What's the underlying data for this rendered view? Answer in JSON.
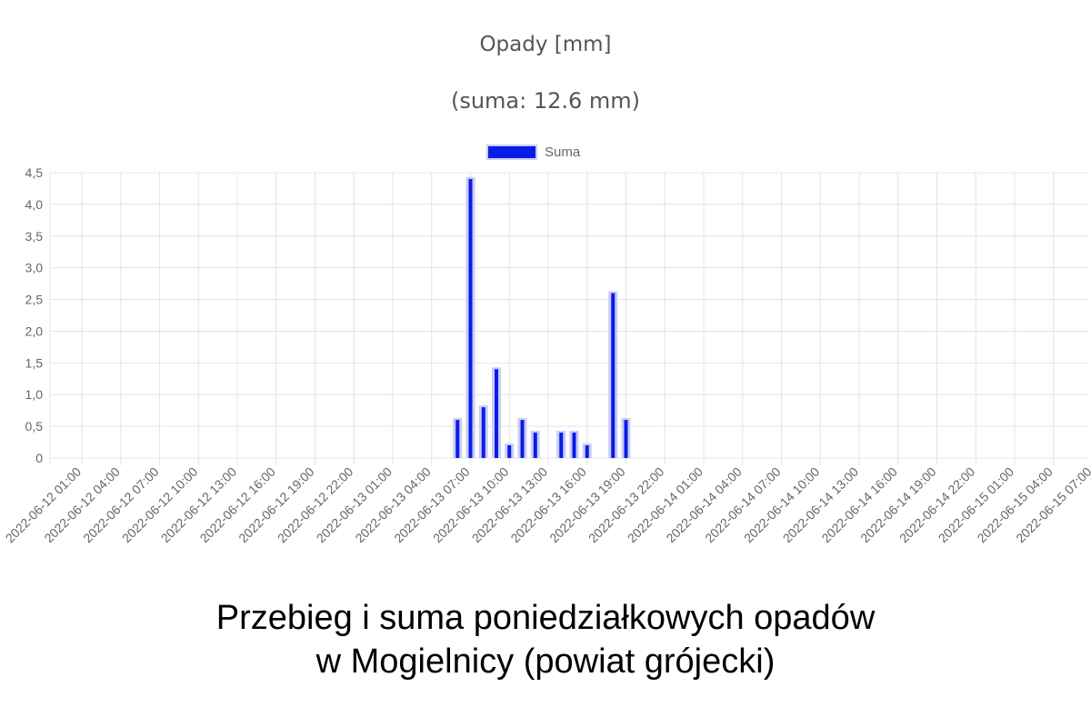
{
  "chart_data": {
    "type": "bar",
    "title": "Opady [mm]",
    "subtitle": "(suma: 12.6 mm)",
    "legend": {
      "label": "Suma",
      "position": "top-center"
    },
    "colors": {
      "bar_fill": "#0a1be8",
      "bar_border": "#c9ccf5",
      "grid": "#e4e4e4",
      "text": "#666666"
    },
    "ylim": [
      0,
      4.5
    ],
    "y_ticks": [
      "0",
      "0,5",
      "1,0",
      "1,5",
      "2,0",
      "2,5",
      "3,0",
      "3,5",
      "4,0",
      "4,5"
    ],
    "x_ticks": [
      "2022-06-12 01:00",
      "2022-06-12 04:00",
      "2022-06-12 07:00",
      "2022-06-12 10:00",
      "2022-06-12 13:00",
      "2022-06-12 16:00",
      "2022-06-12 19:00",
      "2022-06-12 22:00",
      "2022-06-13 01:00",
      "2022-06-13 04:00",
      "2022-06-13 07:00",
      "2022-06-13 10:00",
      "2022-06-13 13:00",
      "2022-06-13 16:00",
      "2022-06-13 19:00",
      "2022-06-13 22:00",
      "2022-06-14 01:00",
      "2022-06-14 04:00",
      "2022-06-14 07:00",
      "2022-06-14 10:00",
      "2022-06-14 13:00",
      "2022-06-14 16:00",
      "2022-06-14 19:00",
      "2022-06-14 22:00",
      "2022-06-15 01:00",
      "2022-06-15 04:00",
      "2022-06-15 07:00"
    ],
    "grid": true,
    "series": [
      {
        "name": "Suma",
        "points": [
          {
            "x": "2022-06-13 06:00",
            "y": 0.6
          },
          {
            "x": "2022-06-13 07:00",
            "y": 4.4
          },
          {
            "x": "2022-06-13 08:00",
            "y": 0.8
          },
          {
            "x": "2022-06-13 09:00",
            "y": 1.4
          },
          {
            "x": "2022-06-13 10:00",
            "y": 0.2
          },
          {
            "x": "2022-06-13 11:00",
            "y": 0.6
          },
          {
            "x": "2022-06-13 12:00",
            "y": 0.4
          },
          {
            "x": "2022-06-13 14:00",
            "y": 0.4
          },
          {
            "x": "2022-06-13 15:00",
            "y": 0.4
          },
          {
            "x": "2022-06-13 16:00",
            "y": 0.2
          },
          {
            "x": "2022-06-13 18:00",
            "y": 2.6
          },
          {
            "x": "2022-06-13 19:00",
            "y": 0.6
          }
        ]
      }
    ]
  },
  "caption": {
    "line1": "Przebieg i suma poniedziałkowych opadów",
    "line2": "w Mogielnicy (powiat grójecki)"
  }
}
